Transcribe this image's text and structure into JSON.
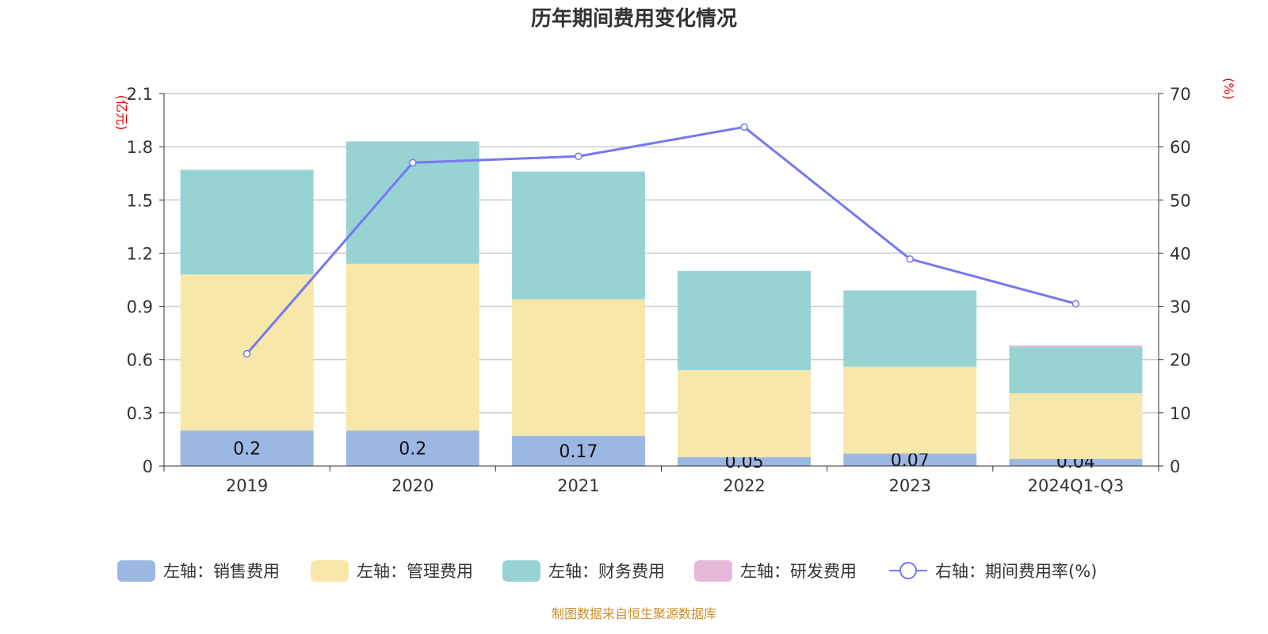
{
  "chart_data": {
    "type": "bar",
    "title": "历年期间费用变化情况",
    "left_unit": "(亿元)",
    "right_unit": "(%)",
    "categories": [
      "2019",
      "2020",
      "2021",
      "2022",
      "2023",
      "2024Q1-Q3"
    ],
    "left_ylim": [
      0,
      2.1
    ],
    "left_ticks": [
      "0",
      "0.3",
      "0.6",
      "0.9",
      "1.2",
      "1.5",
      "1.8",
      "2.1"
    ],
    "right_ylim": [
      0,
      70
    ],
    "right_ticks": [
      "0",
      "10",
      "20",
      "30",
      "40",
      "50",
      "60",
      "70"
    ],
    "grid": true,
    "legend_placement": "bottom",
    "series": [
      {
        "name": "左轴：销售费用",
        "axis": "left",
        "stack": true,
        "color": "#9cb8e2",
        "values": [
          0.2,
          0.2,
          0.17,
          0.05,
          0.07,
          0.04
        ],
        "labels": [
          "0.2",
          "0.2",
          "0.17",
          "0.05",
          "0.07",
          "0.04"
        ]
      },
      {
        "name": "左轴：管理费用",
        "axis": "left",
        "stack": true,
        "color": "#f7e7a9",
        "values": [
          0.88,
          0.94,
          0.77,
          0.49,
          0.49,
          0.37
        ]
      },
      {
        "name": "左轴：财务费用",
        "axis": "left",
        "stack": true,
        "color": "#98d3d4",
        "values": [
          0.59,
          0.69,
          0.72,
          0.56,
          0.43,
          0.26
        ]
      },
      {
        "name": "左轴：研发费用",
        "axis": "left",
        "stack": true,
        "color": "#e6b8d9",
        "values": [
          0,
          0,
          0,
          0,
          0,
          0.01
        ]
      },
      {
        "name": "右轴：期间费用率(%)",
        "axis": "right",
        "type": "line",
        "color": "#7777f2",
        "values": [
          21.1,
          57.0,
          58.2,
          63.7,
          38.9,
          30.5
        ]
      }
    ]
  },
  "footer": "制图数据来自恒生聚源数据库"
}
